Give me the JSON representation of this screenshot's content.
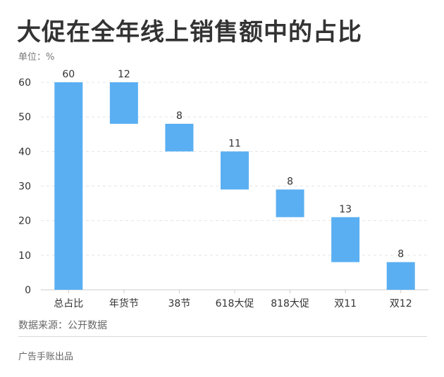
{
  "title": "大促在全年线上销售额中的占比",
  "unit_label": "单位：%",
  "source": "数据来源：公开数据",
  "footer": "广告手账出品",
  "colors": {
    "bar": "#5AAFF2",
    "text": "#333333",
    "grid": "#e4e4e4",
    "axis": "#cccccc"
  },
  "chart_data": {
    "type": "bar",
    "subtype": "waterfall",
    "title": "大促在全年线上销售额中的占比",
    "ylabel": "单位：%",
    "categories": [
      "总占比",
      "年货节",
      "38节",
      "618大促",
      "818大促",
      "双11",
      "双12"
    ],
    "values": [
      60,
      12,
      8,
      11,
      8,
      13,
      8
    ],
    "bar_ranges": [
      [
        0,
        60
      ],
      [
        48,
        60
      ],
      [
        40,
        48
      ],
      [
        29,
        40
      ],
      [
        21,
        29
      ],
      [
        8,
        21
      ],
      [
        0,
        8
      ]
    ],
    "ylim": [
      0,
      60
    ],
    "yticks": [
      0,
      10,
      20,
      30,
      40,
      50,
      60
    ],
    "grid": true,
    "legend": "none"
  }
}
